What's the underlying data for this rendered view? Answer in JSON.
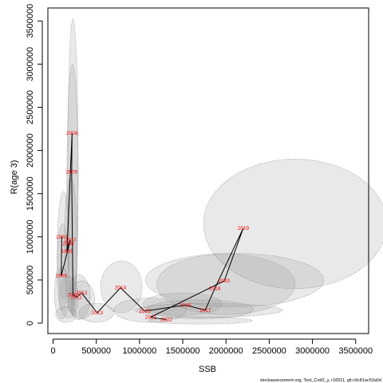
{
  "chart_data": {
    "type": "scatter",
    "title": "",
    "xlabel": "SSB",
    "ylabel": "R(age 3)",
    "xlim": [
      -60000,
      3650000
    ],
    "ylim": [
      -120000,
      3650000
    ],
    "x_ticks": [
      0,
      500000,
      1000000,
      1500000,
      2000000,
      2500000,
      3000000,
      3500000
    ],
    "y_ticks": [
      0,
      500000,
      1000000,
      1500000,
      2000000,
      2500000,
      3000000,
      3500000
    ],
    "x_tick_labels": [
      "0",
      "500000",
      "1000000",
      "1500000",
      "2000000",
      "2500000",
      "3000000",
      "3500000"
    ],
    "y_tick_labels": [
      "0",
      "500000",
      "1000000",
      "1500000",
      "2000000",
      "2500000",
      "3000000",
      "3500000"
    ],
    "grid": false,
    "series": [
      {
        "label_color": "#ff0000",
        "line_color": "#000000",
        "points": [
          {
            "year": "1963",
            "x": 100000,
            "y": 1000000
          },
          {
            "year": "1966",
            "x": 95000,
            "y": 550000
          },
          {
            "year": "2007",
            "x": 200000,
            "y": 960000
          },
          {
            "year": "2006",
            "x": 175000,
            "y": 920000
          },
          {
            "year": "1985",
            "x": 160000,
            "y": 830000
          },
          {
            "year": "2008",
            "x": 220000,
            "y": 2200000
          },
          {
            "year": "2009",
            "x": 215000,
            "y": 1750000
          },
          {
            "year": "2010",
            "x": 230000,
            "y": 330000
          },
          {
            "year": "2011",
            "x": 270000,
            "y": 300000
          },
          {
            "year": "2012",
            "x": 330000,
            "y": 350000
          },
          {
            "year": "2013",
            "x": 510000,
            "y": 120000
          },
          {
            "year": "2014",
            "x": 780000,
            "y": 410000
          },
          {
            "year": "2015",
            "x": 1060000,
            "y": 140000
          },
          {
            "year": "2016",
            "x": 1530000,
            "y": 210000
          },
          {
            "year": "2017",
            "x": 1760000,
            "y": 150000
          },
          {
            "year": "2018",
            "x": 1870000,
            "y": 400000
          },
          {
            "year": "2019",
            "x": 2200000,
            "y": 1100000
          },
          {
            "year": "2020",
            "x": 1980000,
            "y": 490000
          },
          {
            "year": "2021",
            "x": 1130000,
            "y": 70000
          },
          {
            "year": "2022",
            "x": 1310000,
            "y": 40000
          }
        ],
        "ellipses": [
          {
            "cx": 230000,
            "cy": 1800000,
            "rx": 60000,
            "ry": 1720000
          },
          {
            "cx": 225000,
            "cy": 1600000,
            "rx": 65000,
            "ry": 1400000
          },
          {
            "cx": 205000,
            "cy": 900000,
            "rx": 75000,
            "ry": 780000
          },
          {
            "cx": 120000,
            "cy": 900000,
            "rx": 70000,
            "ry": 620000
          },
          {
            "cx": 110000,
            "cy": 650000,
            "rx": 65000,
            "ry": 500000
          },
          {
            "cx": 100000,
            "cy": 350000,
            "rx": 85000,
            "ry": 300000
          },
          {
            "cx": 300000,
            "cy": 300000,
            "rx": 130000,
            "ry": 260000
          },
          {
            "cx": 330000,
            "cy": 270000,
            "rx": 150000,
            "ry": 220000
          },
          {
            "cx": 500000,
            "cy": 120000,
            "rx": 200000,
            "ry": 110000
          },
          {
            "cx": 790000,
            "cy": 420000,
            "rx": 240000,
            "ry": 300000
          },
          {
            "cx": 1120000,
            "cy": 150000,
            "rx": 420000,
            "ry": 140000
          },
          {
            "cx": 1500000,
            "cy": 220000,
            "rx": 460000,
            "ry": 130000
          },
          {
            "cx": 1700000,
            "cy": 160000,
            "rx": 620000,
            "ry": 110000
          },
          {
            "cx": 1800000,
            "cy": 150000,
            "rx": 850000,
            "ry": 80000
          },
          {
            "cx": 1700000,
            "cy": 30000,
            "rx": 600000,
            "ry": 40000
          },
          {
            "cx": 2000000,
            "cy": 450000,
            "rx": 800000,
            "ry": 350000
          },
          {
            "cx": 2100000,
            "cy": 500000,
            "rx": 1030000,
            "ry": 310000
          },
          {
            "cx": 2800000,
            "cy": 1150000,
            "rx": 1060000,
            "ry": 750000
          },
          {
            "cx": 150000,
            "cy": 100000,
            "rx": 120000,
            "ry": 90000
          },
          {
            "cx": 180000,
            "cy": 300000,
            "rx": 110000,
            "ry": 240000
          }
        ]
      }
    ]
  },
  "footer_text": "stockassessment.org, Test_Cod2_y, r18311, git:c9c81ac53a0d"
}
